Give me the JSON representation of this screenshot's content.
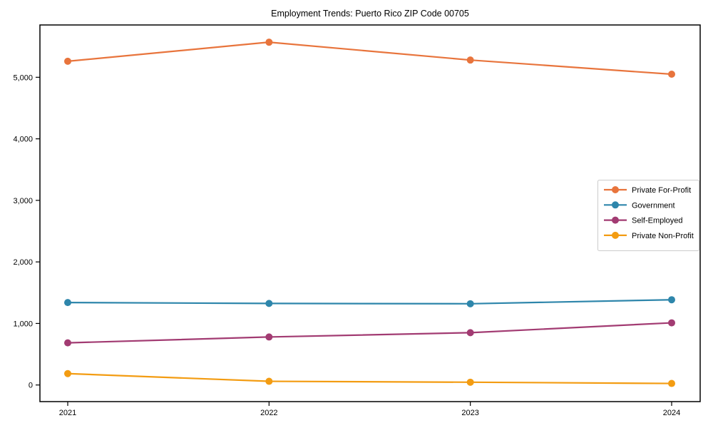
{
  "chart_data": {
    "type": "line",
    "title": "Employment Trends: Puerto Rico ZIP Code 00705",
    "xlabel": "",
    "ylabel": "",
    "x": [
      2021,
      2022,
      2023,
      2024
    ],
    "xtick_labels": [
      "2021",
      "2022",
      "2023",
      "2024"
    ],
    "series": [
      {
        "name": "Private For-Profit",
        "color": "#E8743C",
        "values": [
          5260,
          5570,
          5280,
          5050
        ]
      },
      {
        "name": "Government",
        "color": "#2E86AB",
        "values": [
          1340,
          1325,
          1320,
          1385
        ]
      },
      {
        "name": "Self-Employed",
        "color": "#A23B72",
        "values": [
          685,
          780,
          850,
          1010
        ]
      },
      {
        "name": "Private Non-Profit",
        "color": "#F39C12",
        "values": [
          185,
          60,
          45,
          25
        ]
      }
    ],
    "yticks": [
      0,
      1000,
      2000,
      3000,
      4000,
      5000
    ],
    "ytick_labels": [
      "0",
      "1,000",
      "2,000",
      "3,000",
      "4,000",
      "5,000"
    ],
    "ylim": [
      -270,
      5850
    ],
    "grid": false,
    "legend_position": "center-right",
    "background_color": "#ffffff",
    "spine_color": "#000000",
    "legend_border_color": "#cccccc"
  }
}
